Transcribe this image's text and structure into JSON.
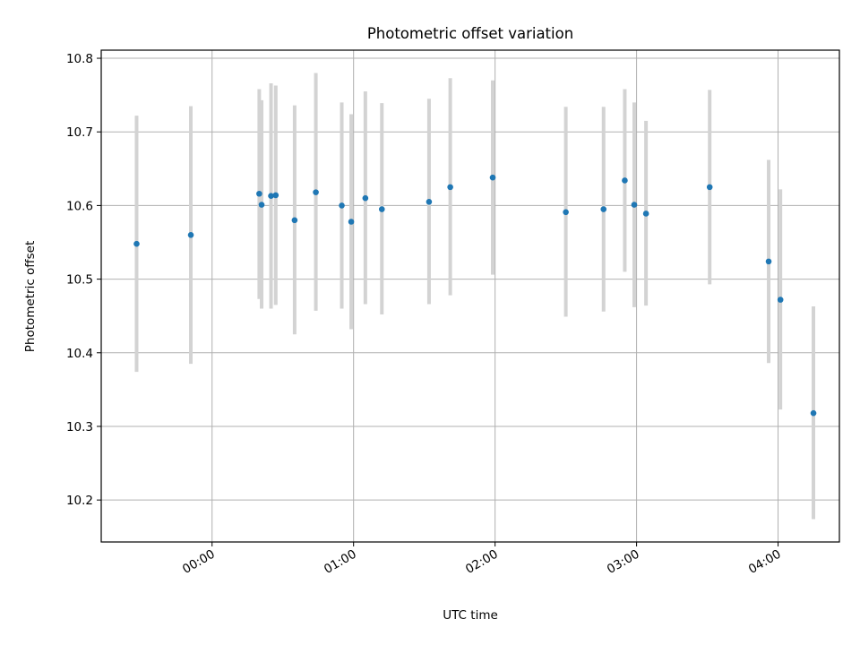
{
  "chart_data": {
    "type": "scatter",
    "title": "Photometric offset variation",
    "xlabel": "UTC time",
    "ylabel": "Photometric offset",
    "x_ticks": [
      "00:00",
      "01:00",
      "02:00",
      "03:00",
      "04:00"
    ],
    "y_ticks": [
      "10.2",
      "10.3",
      "10.4",
      "10.5",
      "10.6",
      "10.7",
      "10.8"
    ],
    "xlim": [
      "23:13",
      "04:26"
    ],
    "ylim": [
      10.143,
      10.811
    ],
    "grid": true,
    "series": [
      {
        "marker_color": "#1f77b4",
        "error_color": "#d3d3d3",
        "points": [
          {
            "x": "23:28",
            "y": 10.548,
            "ylow": 10.374,
            "yhigh": 10.722
          },
          {
            "x": "23:51",
            "y": 10.56,
            "ylow": 10.385,
            "yhigh": 10.735
          },
          {
            "x": "00:20",
            "y": 10.616,
            "ylow": 10.473,
            "yhigh": 10.758
          },
          {
            "x": "00:21",
            "y": 10.601,
            "ylow": 10.46,
            "yhigh": 10.743
          },
          {
            "x": "00:25",
            "y": 10.613,
            "ylow": 10.46,
            "yhigh": 10.766
          },
          {
            "x": "00:27",
            "y": 10.614,
            "ylow": 10.465,
            "yhigh": 10.763
          },
          {
            "x": "00:35",
            "y": 10.58,
            "ylow": 10.425,
            "yhigh": 10.736
          },
          {
            "x": "00:44",
            "y": 10.618,
            "ylow": 10.457,
            "yhigh": 10.78
          },
          {
            "x": "00:55",
            "y": 10.6,
            "ylow": 10.46,
            "yhigh": 10.74
          },
          {
            "x": "00:59",
            "y": 10.578,
            "ylow": 10.432,
            "yhigh": 10.724
          },
          {
            "x": "01:05",
            "y": 10.61,
            "ylow": 10.466,
            "yhigh": 10.755
          },
          {
            "x": "01:12",
            "y": 10.595,
            "ylow": 10.452,
            "yhigh": 10.739
          },
          {
            "x": "01:32",
            "y": 10.605,
            "ylow": 10.466,
            "yhigh": 10.745
          },
          {
            "x": "01:41",
            "y": 10.625,
            "ylow": 10.478,
            "yhigh": 10.773
          },
          {
            "x": "01:59",
            "y": 10.638,
            "ylow": 10.506,
            "yhigh": 10.77
          },
          {
            "x": "02:30",
            "y": 10.591,
            "ylow": 10.449,
            "yhigh": 10.734
          },
          {
            "x": "02:46",
            "y": 10.595,
            "ylow": 10.456,
            "yhigh": 10.734
          },
          {
            "x": "02:55",
            "y": 10.634,
            "ylow": 10.51,
            "yhigh": 10.758
          },
          {
            "x": "02:59",
            "y": 10.601,
            "ylow": 10.462,
            "yhigh": 10.74
          },
          {
            "x": "03:04",
            "y": 10.589,
            "ylow": 10.464,
            "yhigh": 10.715
          },
          {
            "x": "03:31",
            "y": 10.625,
            "ylow": 10.493,
            "yhigh": 10.757
          },
          {
            "x": "03:56",
            "y": 10.524,
            "ylow": 10.386,
            "yhigh": 10.662
          },
          {
            "x": "04:01",
            "y": 10.472,
            "ylow": 10.323,
            "yhigh": 10.622
          },
          {
            "x": "04:15",
            "y": 10.318,
            "ylow": 10.174,
            "yhigh": 10.463
          }
        ]
      }
    ]
  }
}
